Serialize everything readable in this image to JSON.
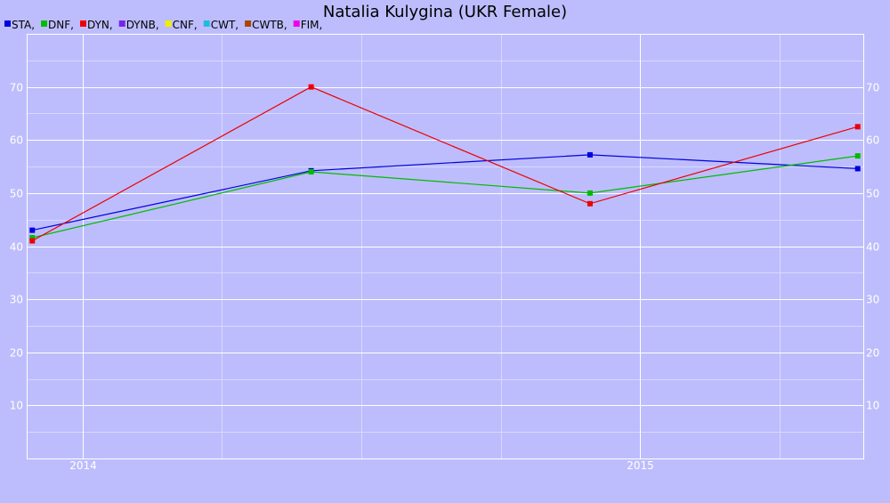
{
  "chart_data": {
    "type": "line",
    "title": "Natalia Kulygina (UKR Female)",
    "xlabel": "",
    "ylabel": "",
    "legend": [
      {
        "label": "STA,",
        "color": "#0000dd"
      },
      {
        "label": "DNF,",
        "color": "#00bb00"
      },
      {
        "label": "DYN,",
        "color": "#ee0000"
      },
      {
        "label": "DYNB,",
        "color": "#7722ee"
      },
      {
        "label": "CNF,",
        "color": "#eeee00"
      },
      {
        "label": "CWT,",
        "color": "#22bbdd"
      },
      {
        "label": "CWTB,",
        "color": "#aa4400"
      },
      {
        "label": "FIM,",
        "color": "#ee00ee"
      }
    ],
    "legend_position": "top-left",
    "x_ticks": [
      {
        "label": "2014",
        "x": 2014.0
      },
      {
        "label": "2015",
        "x": 2015.0
      }
    ],
    "xlim": [
      2013.9,
      2015.4
    ],
    "y_ticks": [
      10,
      20,
      30,
      40,
      50,
      60,
      70
    ],
    "ylim": [
      0,
      80
    ],
    "grid": true,
    "series": [
      {
        "name": "STA",
        "color": "#0000dd",
        "points": [
          {
            "x": 2013.91,
            "y": 43.0
          },
          {
            "x": 2014.41,
            "y": 54.2
          },
          {
            "x": 2014.91,
            "y": 57.2
          },
          {
            "x": 2015.39,
            "y": 54.6
          }
        ]
      },
      {
        "name": "DNF",
        "color": "#00bb00",
        "points": [
          {
            "x": 2013.91,
            "y": 41.6
          },
          {
            "x": 2014.41,
            "y": 54.0
          },
          {
            "x": 2014.91,
            "y": 50.0
          },
          {
            "x": 2015.39,
            "y": 57.0
          }
        ]
      },
      {
        "name": "DYN",
        "color": "#ee0000",
        "points": [
          {
            "x": 2013.91,
            "y": 41.0
          },
          {
            "x": 2014.41,
            "y": 70.0
          },
          {
            "x": 2014.91,
            "y": 48.0
          },
          {
            "x": 2015.39,
            "y": 62.5
          }
        ]
      }
    ]
  }
}
